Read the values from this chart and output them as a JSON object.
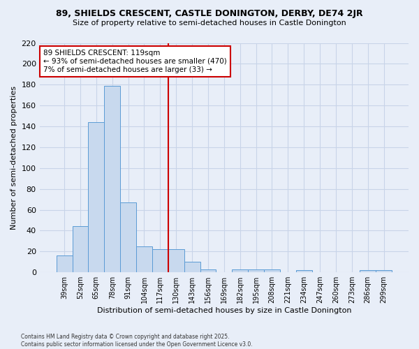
{
  "title": "89, SHIELDS CRESCENT, CASTLE DONINGTON, DERBY, DE74 2JR",
  "subtitle": "Size of property relative to semi-detached houses in Castle Donington",
  "xlabel": "Distribution of semi-detached houses by size in Castle Donington",
  "ylabel": "Number of semi-detached properties",
  "footer_line1": "Contains HM Land Registry data © Crown copyright and database right 2025.",
  "footer_line2": "Contains public sector information licensed under the Open Government Licence v3.0.",
  "bin_labels": [
    "39sqm",
    "52sqm",
    "65sqm",
    "78sqm",
    "91sqm",
    "104sqm",
    "117sqm",
    "130sqm",
    "143sqm",
    "156sqm",
    "169sqm",
    "182sqm",
    "195sqm",
    "208sqm",
    "221sqm",
    "234sqm",
    "247sqm",
    "260sqm",
    "273sqm",
    "286sqm",
    "299sqm"
  ],
  "bar_values": [
    16,
    44,
    144,
    179,
    67,
    25,
    22,
    22,
    10,
    3,
    0,
    3,
    3,
    3,
    0,
    2,
    0,
    0,
    0,
    2,
    2
  ],
  "bar_color": "#c8d9ee",
  "bar_edge_color": "#5b9bd5",
  "highlight_bin_index": 6,
  "annotation_title": "89 SHIELDS CRESCENT: 119sqm",
  "annotation_line1": "← 93% of semi-detached houses are smaller (470)",
  "annotation_line2": "7% of semi-detached houses are larger (33) →",
  "annotation_box_color": "#ffffff",
  "annotation_box_edge": "#cc0000",
  "vline_color": "#cc0000",
  "ylim": [
    0,
    220
  ],
  "yticks": [
    0,
    20,
    40,
    60,
    80,
    100,
    120,
    140,
    160,
    180,
    200,
    220
  ],
  "grid_color": "#c8d4e8",
  "bg_color": "#e8eef8",
  "plot_bg_color": "#e8eef8"
}
